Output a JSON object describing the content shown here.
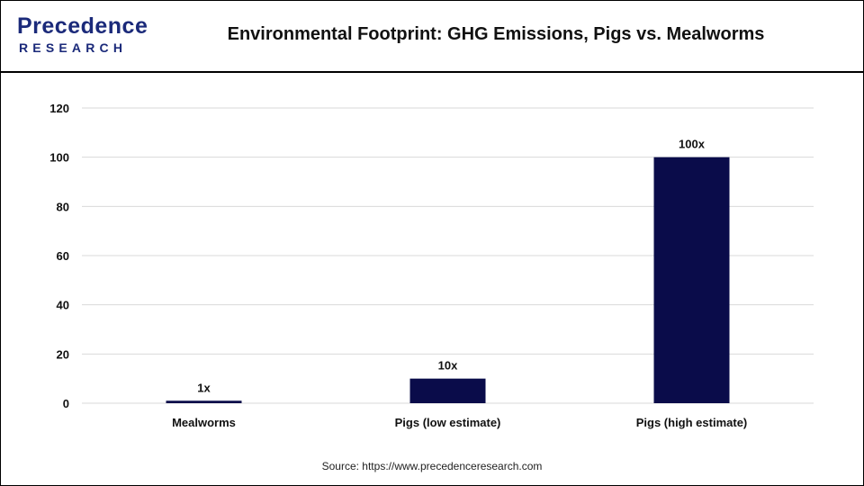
{
  "header": {
    "logo_word": "Precedence",
    "logo_sub": "RESEARCH",
    "title": "Environmental Footprint: GHG Emissions, Pigs vs. Mealworms"
  },
  "source": "Source: https://www.precedenceresearch.com",
  "colors": {
    "bar": "#0a0c4a",
    "grid": "#d9d9d9",
    "brand": "#1b2a7a"
  },
  "chart_data": {
    "type": "bar",
    "title": "Environmental Footprint: GHG Emissions, Pigs vs. Mealworms",
    "xlabel": "",
    "ylabel": "",
    "categories": [
      "Mealworms",
      "Pigs (low estimate)",
      "Pigs (high estimate)"
    ],
    "values": [
      1,
      10,
      100
    ],
    "data_labels": [
      "1x",
      "10x",
      "100x"
    ],
    "ylim": [
      0,
      120
    ],
    "yticks": [
      0,
      20,
      40,
      60,
      80,
      100,
      120
    ],
    "grid": true,
    "legend": "none"
  }
}
